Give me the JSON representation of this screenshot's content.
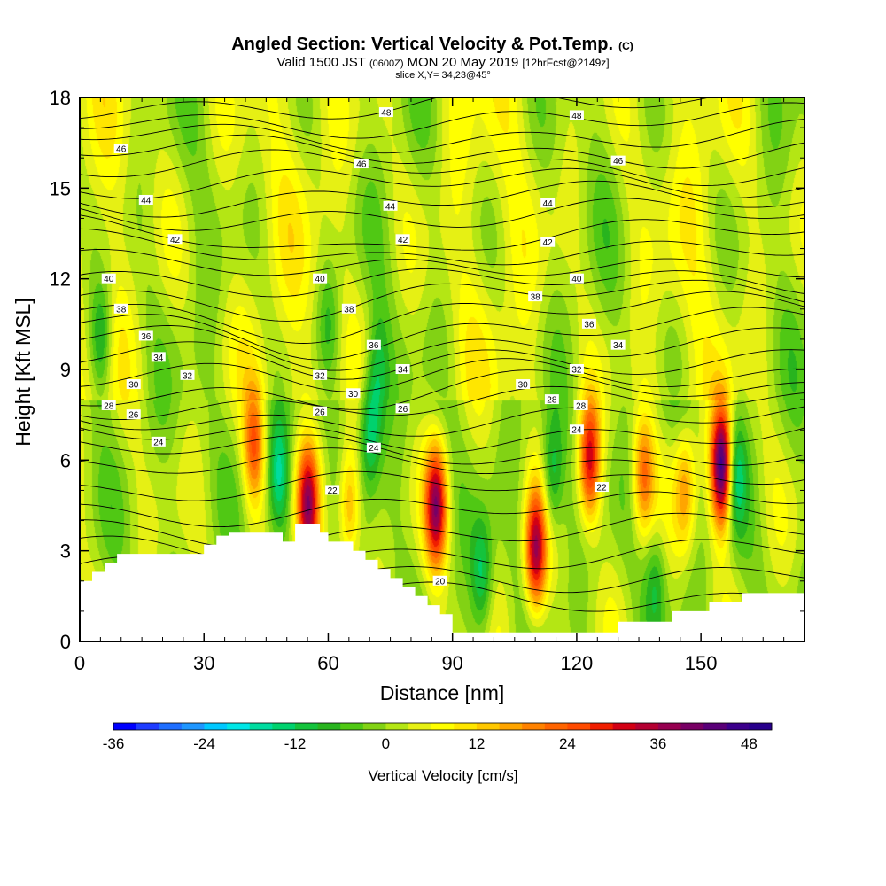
{
  "title": {
    "main": "Angled Section: Vertical Velocity & Pot.Temp.",
    "main_mark": "(C)",
    "valid_prefix": "Valid 1500 JST",
    "valid_utc": "(0600Z)",
    "valid_date": "MON 20 May 2019",
    "forecast": "[12hrFcst@2149z]",
    "slice": "slice X,Y= 34,23@45°"
  },
  "chart_data": {
    "type": "heatmap",
    "title": "Angled Section: Vertical Velocity & Pot.Temp.",
    "xlabel": "Distance [nm]",
    "ylabel": "Height [Kft MSL]",
    "xlim": [
      0,
      175
    ],
    "ylim": [
      0,
      18
    ],
    "x_ticks": [
      0,
      30,
      60,
      90,
      120,
      150
    ],
    "y_ticks": [
      0,
      3,
      6,
      9,
      12,
      15,
      18
    ],
    "x_tick_labels": [
      "0",
      "30",
      "60",
      "90",
      "120",
      "150"
    ],
    "y_tick_labels": [
      "0",
      "3",
      "6",
      "9",
      "12",
      "15",
      "18"
    ],
    "colorbar": {
      "label": "Vertical Velocity [cm/s]",
      "min": -36,
      "max": 51,
      "step": 3,
      "tick_values": [
        -36,
        -24,
        -12,
        0,
        12,
        24,
        36,
        48
      ],
      "tick_labels": [
        "-36",
        "-24",
        "-12",
        "0",
        "12",
        "24",
        "36",
        "48"
      ],
      "colors": [
        "#0000ff",
        "#1e3cff",
        "#1e6eff",
        "#1e96ff",
        "#00c8ff",
        "#00e6e6",
        "#00dca0",
        "#00d26e",
        "#14c33c",
        "#28b41e",
        "#50c814",
        "#82d214",
        "#b4e614",
        "#e6f014",
        "#ffff00",
        "#ffe600",
        "#ffc800",
        "#ffa500",
        "#ff8200",
        "#ff6400",
        "#ff4b00",
        "#f01e00",
        "#d20014",
        "#b40032",
        "#960050",
        "#780064",
        "#5a0078",
        "#3c008c",
        "#28008c"
      ]
    },
    "terrain": [
      [
        0,
        2.0
      ],
      [
        3,
        2.0
      ],
      [
        3,
        2.3
      ],
      [
        6,
        2.3
      ],
      [
        6,
        2.6
      ],
      [
        9,
        2.6
      ],
      [
        9,
        2.9
      ],
      [
        30,
        2.9
      ],
      [
        30,
        3.2
      ],
      [
        33,
        3.2
      ],
      [
        33,
        3.5
      ],
      [
        36,
        3.5
      ],
      [
        36,
        3.6
      ],
      [
        49,
        3.6
      ],
      [
        49,
        3.3
      ],
      [
        52,
        3.3
      ],
      [
        52,
        3.9
      ],
      [
        58,
        3.9
      ],
      [
        58,
        3.6
      ],
      [
        60,
        3.6
      ],
      [
        60,
        3.3
      ],
      [
        66,
        3.3
      ],
      [
        66,
        3.0
      ],
      [
        69,
        3.0
      ],
      [
        69,
        2.7
      ],
      [
        72,
        2.7
      ],
      [
        72,
        2.4
      ],
      [
        75,
        2.4
      ],
      [
        75,
        2.1
      ],
      [
        78,
        2.1
      ],
      [
        78,
        1.8
      ],
      [
        81,
        1.8
      ],
      [
        81,
        1.5
      ],
      [
        84,
        1.5
      ],
      [
        84,
        1.2
      ],
      [
        87,
        1.2
      ],
      [
        87,
        0.9
      ],
      [
        90,
        0.9
      ],
      [
        90,
        0.3
      ],
      [
        130,
        0.3
      ],
      [
        130,
        0.65
      ],
      [
        143,
        0.65
      ],
      [
        143,
        1.0
      ],
      [
        152,
        1.0
      ],
      [
        152,
        1.3
      ],
      [
        160,
        1.3
      ],
      [
        160,
        1.6
      ],
      [
        175,
        1.6
      ],
      [
        175,
        0
      ],
      [
        0,
        0
      ]
    ],
    "velocity_features": [
      {
        "x": 86,
        "z": 4.5,
        "w": 34
      },
      {
        "x": 110,
        "z": 3.0,
        "w": 34
      },
      {
        "x": 123,
        "z": 6.0,
        "w": 30
      },
      {
        "x": 155,
        "z": 5.8,
        "w": 48
      },
      {
        "x": 55,
        "z": 4.5,
        "w": 33
      },
      {
        "x": 42,
        "z": 6.5,
        "w": 22
      },
      {
        "x": 65,
        "z": 4.5,
        "w": 18
      },
      {
        "x": 136,
        "z": 5.5,
        "w": 20
      },
      {
        "x": 146,
        "z": 5.0,
        "w": 16
      },
      {
        "x": 48,
        "z": 5.5,
        "w": -16
      },
      {
        "x": 70,
        "z": 7.0,
        "w": -16
      },
      {
        "x": 114,
        "z": 5.5,
        "w": -14
      },
      {
        "x": 158,
        "z": 5.5,
        "w": -16
      },
      {
        "x": 5,
        "z": 10.0,
        "w": -14
      },
      {
        "x": 97,
        "z": 2.2,
        "w": -14
      },
      {
        "x": 72,
        "z": 9.0,
        "w": -10
      },
      {
        "x": 60,
        "z": 10.5,
        "w": -8
      },
      {
        "x": 139,
        "z": 2.0,
        "w": -10
      }
    ],
    "theta_isentropes": {
      "min": 20,
      "max": 49,
      "step": 1,
      "labels": [
        {
          "x": 87,
          "z": 2.0,
          "text": "20"
        },
        {
          "x": 61,
          "z": 5.0,
          "text": "22"
        },
        {
          "x": 126,
          "z": 5.1,
          "text": "22"
        },
        {
          "x": 19,
          "z": 6.6,
          "text": "24"
        },
        {
          "x": 71,
          "z": 6.4,
          "text": "24"
        },
        {
          "x": 120,
          "z": 7.0,
          "text": "24"
        },
        {
          "x": 13,
          "z": 7.5,
          "text": "26"
        },
        {
          "x": 58,
          "z": 7.6,
          "text": "26"
        },
        {
          "x": 78,
          "z": 7.7,
          "text": "26"
        },
        {
          "x": 7,
          "z": 7.8,
          "text": "28"
        },
        {
          "x": 114,
          "z": 8.0,
          "text": "28"
        },
        {
          "x": 121,
          "z": 7.8,
          "text": "28"
        },
        {
          "x": 13,
          "z": 8.5,
          "text": "30"
        },
        {
          "x": 66,
          "z": 8.2,
          "text": "30"
        },
        {
          "x": 107,
          "z": 8.5,
          "text": "30"
        },
        {
          "x": 26,
          "z": 8.8,
          "text": "32"
        },
        {
          "x": 58,
          "z": 8.8,
          "text": "32"
        },
        {
          "x": 120,
          "z": 9.0,
          "text": "32"
        },
        {
          "x": 19,
          "z": 9.4,
          "text": "34"
        },
        {
          "x": 78,
          "z": 9.0,
          "text": "34"
        },
        {
          "x": 130,
          "z": 9.8,
          "text": "34"
        },
        {
          "x": 16,
          "z": 10.1,
          "text": "36"
        },
        {
          "x": 71,
          "z": 9.8,
          "text": "36"
        },
        {
          "x": 123,
          "z": 10.5,
          "text": "36"
        },
        {
          "x": 10,
          "z": 11.0,
          "text": "38"
        },
        {
          "x": 65,
          "z": 11.0,
          "text": "38"
        },
        {
          "x": 110,
          "z": 11.4,
          "text": "38"
        },
        {
          "x": 7,
          "z": 12.0,
          "text": "40"
        },
        {
          "x": 58,
          "z": 12.0,
          "text": "40"
        },
        {
          "x": 120,
          "z": 12.0,
          "text": "40"
        },
        {
          "x": 23,
          "z": 13.3,
          "text": "42"
        },
        {
          "x": 78,
          "z": 13.3,
          "text": "42"
        },
        {
          "x": 113,
          "z": 13.2,
          "text": "42"
        },
        {
          "x": 16,
          "z": 14.6,
          "text": "44"
        },
        {
          "x": 75,
          "z": 14.4,
          "text": "44"
        },
        {
          "x": 113,
          "z": 14.5,
          "text": "44"
        },
        {
          "x": 10,
          "z": 16.3,
          "text": "46"
        },
        {
          "x": 68,
          "z": 15.8,
          "text": "46"
        },
        {
          "x": 130,
          "z": 15.9,
          "text": "46"
        },
        {
          "x": 74,
          "z": 17.5,
          "text": "48"
        },
        {
          "x": 120,
          "z": 17.4,
          "text": "48"
        }
      ]
    }
  }
}
